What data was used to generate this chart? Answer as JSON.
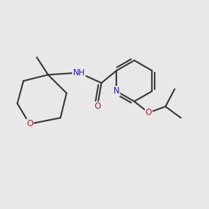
{
  "bg_color": "#e8e8e8",
  "bond_color": "#3a3a3a",
  "bond_width": 1.6,
  "atom_colors": {
    "N": "#1a1acc",
    "O": "#cc1a1a",
    "H": "#888888"
  },
  "font_size": 8.5,
  "fig_size": [
    3.0,
    3.0
  ],
  "xlim": [
    0,
    10
  ],
  "ylim": [
    0,
    10
  ]
}
